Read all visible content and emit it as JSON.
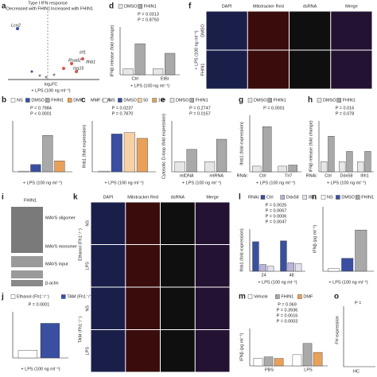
{
  "panels": {
    "a": {
      "letter": "a",
      "title": "Type I IFN response",
      "left_label": "Decreased with FHIN1",
      "right_label": "Increased with FHIN1",
      "genes": [
        "Lcn2",
        "Irf1",
        "Rsad2",
        "Ifnb1",
        "Isg15"
      ],
      "xlabel": "log₂FC",
      "condition": "+ LPS (100 ng ml⁻¹)"
    },
    "d": {
      "letter": "d",
      "ylabel": "IFNβ release (fold change)",
      "categories": [
        "Ctrl",
        "EtBr"
      ],
      "series": [
        {
          "name": "DMSO",
          "color": "#e6e6e6",
          "values": [
            1,
            1
          ]
        },
        {
          "name": "FHIN1",
          "color": "#a9a9a9",
          "values": [
            5.2,
            3.6
          ]
        }
      ],
      "pvalues": [
        "P = 0.0313",
        "P = 0.8750"
      ],
      "ylim": [
        0,
        8
      ],
      "xlabel": "+ LPS (100 ng ml⁻¹)"
    },
    "f": {
      "letter": "f",
      "columns": [
        "DAPI",
        "Mitotracker Red",
        "dsRNA",
        "Merge"
      ],
      "rows": [
        "DMSO",
        "FHIN1"
      ],
      "condition": "+ LPS (100 ng ml⁻¹)"
    },
    "b": {
      "letter": "b",
      "categories": [
        null
      ],
      "series": [
        {
          "name": "NS",
          "color": "#ffffff",
          "values": [
            0.1
          ]
        },
        {
          "name": "DMSO",
          "color": "#3a4fa0",
          "values": [
            1
          ]
        },
        {
          "name": "FHIN1",
          "color": "#a9a9a9",
          "values": [
            5
          ]
        },
        {
          "name": "DMF",
          "color": "#e9a15a",
          "values": [
            1.5
          ]
        }
      ],
      "pvalues": [
        "P = 0.7984",
        "P < 0.0001"
      ],
      "ylim": [
        0,
        7
      ],
      "xlabel": "+ LPS (100 ng ml⁻¹)"
    },
    "c": {
      "letter": "c",
      "ylabel": "Ifnb1 (fold expression)",
      "legend_title": "MMF (μM)",
      "categories": [
        null
      ],
      "series": [
        {
          "name": "NS",
          "color": "#ffffff",
          "values": [
            0.1
          ]
        },
        {
          "name": "DMSO",
          "color": "#3a4fa0",
          "values": [
            5.2
          ]
        },
        {
          "name": "50",
          "color": "#f6d1a6",
          "values": [
            5.4
          ]
        },
        {
          "name": "100",
          "color": "#e9a15a",
          "values": [
            4.6
          ]
        }
      ],
      "pvalues": [
        "P = 0.0237",
        "P = 0.7870"
      ],
      "ylim": [
        0,
        7
      ],
      "xlabel": "+ LPS (100 ng ml⁻¹)"
    },
    "e": {
      "letter": "e",
      "ylabel": "Cytosolic D-loop (fold expression)",
      "categories": [
        "mtDNA",
        "mtRNA"
      ],
      "series": [
        {
          "name": "DMSO",
          "color": "#e6e6e6",
          "values": [
            1,
            1
          ]
        },
        {
          "name": "FHIN1",
          "color": "#a9a9a9",
          "values": [
            2.2,
            3.2
          ]
        }
      ],
      "pvalues": [
        "P = 0.2747",
        "P = 0.0157"
      ],
      "ylim": [
        0,
        5
      ],
      "xlabel": "+ LPS (100 ng ml⁻¹)"
    },
    "g": {
      "letter": "g",
      "ylabel": "Ifnb1 (fold expression)",
      "axis_prefix": "RNAi:",
      "categories": [
        "Ctrl",
        "Tlr7"
      ],
      "series": [
        {
          "name": "DMSO",
          "color": "#e6e6e6",
          "values": [
            1,
            1
          ]
        },
        {
          "name": "FHIN1",
          "color": "#a9a9a9",
          "values": [
            8,
            1.2
          ]
        }
      ],
      "pvalues": [
        "P = 0.0001"
      ],
      "ylim": [
        0,
        10
      ],
      "xlabel": "+ LPS (100 ng ml⁻¹)"
    },
    "h": {
      "letter": "h",
      "ylabel": "IFNβ release (fold change)",
      "axis_prefix": "RNAi:",
      "categories": [
        "Ctrl",
        "Ddx58",
        "Ifih1"
      ],
      "series": [
        {
          "name": "DMSO",
          "color": "#e6e6e6",
          "values": [
            1,
            1,
            1
          ]
        },
        {
          "name": "FHIN1",
          "color": "#a9a9a9",
          "values": [
            3.5,
            2,
            2
          ]
        }
      ],
      "pvalues": [
        "P = 0.016",
        "P = 0.078"
      ],
      "ylim": [
        0,
        5
      ],
      "xlabel": "+ LPS (100 ng ml⁻¹)"
    },
    "i": {
      "letter": "i",
      "lane": "FHIN1",
      "bands": [
        "MAVS oligomer",
        "MAVS monomer",
        "MAVS input",
        "β-actin"
      ]
    },
    "j": {
      "letter": "j",
      "categories": [
        null
      ],
      "series": [
        {
          "name": "Ethanol (Fh1⁻/⁻)",
          "color": "#ffffff",
          "values": [
            1
          ]
        },
        {
          "name": "TAM (Fh1⁻/⁻)",
          "color": "#3a4fa0",
          "values": [
            4.5
          ]
        }
      ],
      "pvalues": [
        "P = 0.0001"
      ],
      "ylim": [
        0,
        6
      ],
      "xlabel": "+ LPS (100 ng ml⁻¹)"
    },
    "k": {
      "letter": "k",
      "columns": [
        "DAPI",
        "Mitotracker Red",
        "dsRNA",
        "Merge"
      ],
      "rows": [
        "NS",
        "LPS",
        "NS",
        "LPS"
      ],
      "groups": [
        "Ethanol (Fh1⁻/⁻)",
        "TAM (Fh1⁻/⁻)"
      ]
    },
    "l": {
      "letter": "l",
      "ylabel": "Ifnb1 (fold expression)",
      "legend_title": "RNAi:",
      "categories": [
        "24",
        "48"
      ],
      "series": [
        {
          "name": "Ctrl",
          "color": "#3a4fa0",
          "values": [
            3.5,
            3.6
          ]
        },
        {
          "name": "Ddx58",
          "color": "#b9b3d9",
          "values": [
            0.8,
            1
          ]
        },
        {
          "name": "Ifih1",
          "color": "#e3e1ef",
          "values": [
            0.6,
            0.9
          ]
        }
      ],
      "pvalues": [
        "P = 0.0025",
        "P = 0.0067",
        "P = 0.0006",
        "P = 0.0047"
      ],
      "ylim": [
        0,
        5
      ],
      "xlabel": "+ LPS (100 ng ml⁻¹)"
    },
    "n": {
      "letter": "n",
      "ylabel": "IFNβ (pg ml⁻¹)",
      "categories": [
        null
      ],
      "series": [
        {
          "name": "NS",
          "color": "#ffffff",
          "values": [
            0.2
          ]
        },
        {
          "name": "DMSO",
          "color": "#3a4fa0",
          "values": [
            1
          ]
        },
        {
          "name": "FHIN1",
          "color": "#a9a9a9",
          "values": [
            3.2
          ]
        }
      ],
      "pvalues": [],
      "ylim": [
        0,
        5
      ],
      "xlabel": "+ LPS (100 ng ml⁻¹)"
    },
    "m": {
      "letter": "m",
      "ylabel": "IFNβ (pg ml⁻¹)",
      "categories": [
        "PBS",
        "LPS"
      ],
      "series": [
        {
          "name": "Vehicle",
          "color": "#ffffff",
          "values": [
            1,
            1.5
          ]
        },
        {
          "name": "FHIN1",
          "color": "#a9a9a9",
          "values": [
            1.2,
            3
          ]
        },
        {
          "name": "DMF",
          "color": "#e9a15a",
          "values": [
            1,
            1.8
          ]
        }
      ],
      "pvalues": [
        "P = 0.069",
        "P = 0.3936",
        "P = 0.0016",
        "P = 0.0003"
      ],
      "ylim": [
        0,
        5
      ]
    },
    "o": {
      "letter": "o",
      "ylabel": "FH expression",
      "categories": [
        "HC"
      ],
      "pvalues": [
        "P ="
      ]
    }
  }
}
